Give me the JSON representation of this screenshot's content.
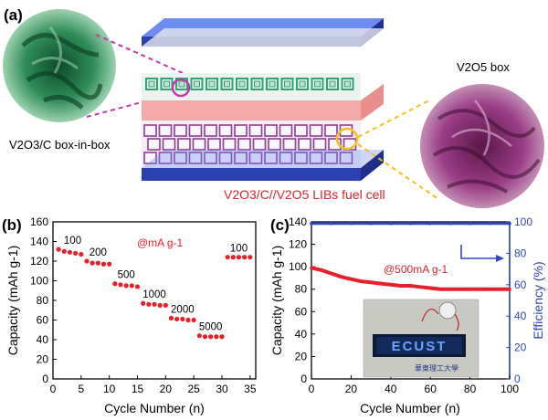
{
  "panel_a": {
    "label": "(a)",
    "left_material": "V2O3/C box-in-box",
    "right_material": "V2O5 box",
    "caption": "V2O3/C//V2O5 LIBs fuel cell",
    "colors": {
      "caption": "#d8262b",
      "substrate": "#3852c8",
      "electrolyte": "#f4aaa8",
      "left_box": "#2fa27a",
      "right_box": "#8e3c95"
    }
  },
  "chart_data": [
    {
      "panel": "(b)",
      "type": "scatter",
      "xlabel": "Cycle Number (n)",
      "ylabel": "Capacity (mAh g-1)",
      "xlim": [
        0,
        36
      ],
      "ylim": [
        0,
        160
      ],
      "xticks": [
        0,
        5,
        10,
        15,
        20,
        25,
        30,
        35
      ],
      "yticks": [
        0,
        20,
        40,
        60,
        80,
        100,
        120,
        140,
        160
      ],
      "annotation": "@mA g-1",
      "color": "#e5202a",
      "groups": [
        {
          "label": "100",
          "x": [
            1,
            2,
            3,
            4,
            5
          ],
          "y": [
            132,
            130,
            129,
            128,
            127
          ]
        },
        {
          "label": "200",
          "x": [
            6,
            7,
            8,
            9,
            10
          ],
          "y": [
            120,
            118,
            118,
            117,
            117
          ]
        },
        {
          "label": "500",
          "x": [
            11,
            12,
            13,
            14,
            15
          ],
          "y": [
            97,
            96,
            95,
            95,
            94
          ]
        },
        {
          "label": "1000",
          "x": [
            16,
            17,
            18,
            19,
            20
          ],
          "y": [
            77,
            76,
            76,
            75,
            75
          ]
        },
        {
          "label": "2000",
          "x": [
            21,
            22,
            23,
            24,
            25
          ],
          "y": [
            62,
            61,
            61,
            60,
            60
          ]
        },
        {
          "label": "5000",
          "x": [
            26,
            27,
            28,
            29,
            30
          ],
          "y": [
            44,
            43,
            43,
            43,
            43
          ]
        },
        {
          "label": "100",
          "x": [
            31,
            32,
            33,
            34,
            35
          ],
          "y": [
            124,
            124,
            124,
            124,
            124
          ]
        }
      ]
    },
    {
      "panel": "(c)",
      "type": "line",
      "xlabel": "Cycle Number (n)",
      "ylabel": "Capacity (mAh g-1)",
      "y2label": "Efficiency (%)",
      "xlim": [
        0,
        100
      ],
      "ylim": [
        0,
        140
      ],
      "y2lim": [
        0,
        100
      ],
      "xticks": [
        0,
        20,
        40,
        60,
        80,
        100
      ],
      "yticks": [
        0,
        20,
        40,
        60,
        80,
        100,
        120,
        140
      ],
      "y2ticks": [
        0,
        20,
        40,
        60,
        80,
        100
      ],
      "annotation": "@500mA g-1",
      "series": [
        {
          "axis": "left",
          "color": "#e5202a",
          "x": [
            0,
            5,
            10,
            15,
            20,
            25,
            30,
            35,
            40,
            45,
            50,
            55,
            60,
            65,
            70,
            75,
            80,
            85,
            90,
            95,
            100
          ],
          "y": [
            99,
            97,
            94,
            91,
            89,
            87,
            86,
            85,
            84,
            83,
            83,
            82,
            81,
            80,
            80,
            80,
            80,
            80,
            80,
            80,
            80
          ]
        },
        {
          "axis": "right",
          "color": "#3147b8",
          "x": [
            0,
            10,
            20,
            30,
            40,
            50,
            60,
            70,
            80,
            90,
            100
          ],
          "y": [
            99,
            99,
            99,
            99,
            99,
            99,
            99,
            99,
            99,
            99,
            99
          ]
        }
      ],
      "inset": {
        "display_text": "ECUST",
        "label_text": "華東理工大學"
      }
    }
  ]
}
